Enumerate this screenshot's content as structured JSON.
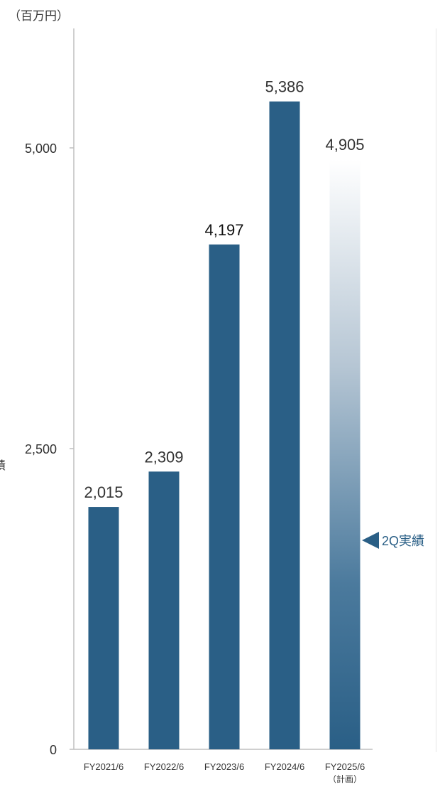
{
  "unit_label": "（百万円）",
  "cut_glyph": "績",
  "marker_label": "2Q実績",
  "colors": {
    "bar": "#2a5f86",
    "axis": "#bfbfbf",
    "text": "#333333"
  },
  "chart_data": {
    "type": "bar",
    "categories": [
      "FY2021/6",
      "FY2022/6",
      "FY2023/6",
      "FY2024/6",
      "FY2025/6"
    ],
    "category_sublabels": [
      "",
      "",
      "",
      "",
      "（計画）"
    ],
    "values": [
      2015,
      2309,
      4197,
      5386,
      4905
    ],
    "value_labels": [
      "2,015",
      "2,309",
      "4,197",
      "5,386",
      "4,905"
    ],
    "plan_flags": [
      false,
      false,
      false,
      false,
      true
    ],
    "yticks": [
      0,
      2500,
      5000
    ],
    "ytick_labels": [
      "0",
      "2,500",
      "5,000"
    ],
    "ylim": [
      0,
      6000
    ],
    "grid": false
  }
}
